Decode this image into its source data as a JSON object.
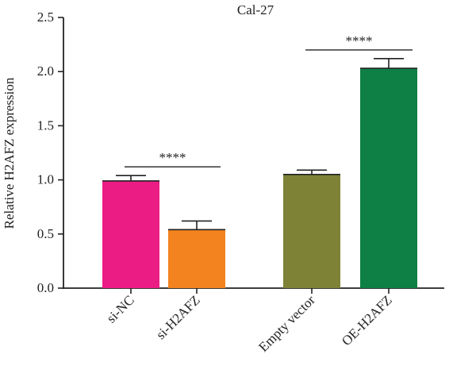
{
  "chart_data": {
    "type": "bar",
    "title": "Cal-27",
    "ylabel": "Relative H2AFZ expression",
    "xlabel": "",
    "ylim": [
      0,
      2.5
    ],
    "yticks": [
      "0.0",
      "0.5",
      "1.0",
      "1.5",
      "2.0",
      "2.5"
    ],
    "categories": [
      "si-NC",
      "si-H2AFZ",
      "Empty vector",
      "OE-H2AFZ"
    ],
    "values": [
      0.99,
      0.54,
      1.05,
      2.03
    ],
    "errors": [
      0.05,
      0.08,
      0.04,
      0.09
    ],
    "colors": [
      "#ec1c85",
      "#f3831f",
      "#7e8236",
      "#0e7f45"
    ],
    "grid": false,
    "significance": [
      {
        "from": 0,
        "to": 1,
        "label": "****",
        "y": 1.12
      },
      {
        "from": 2,
        "to": 3,
        "label": "****",
        "y": 2.2
      }
    ]
  }
}
